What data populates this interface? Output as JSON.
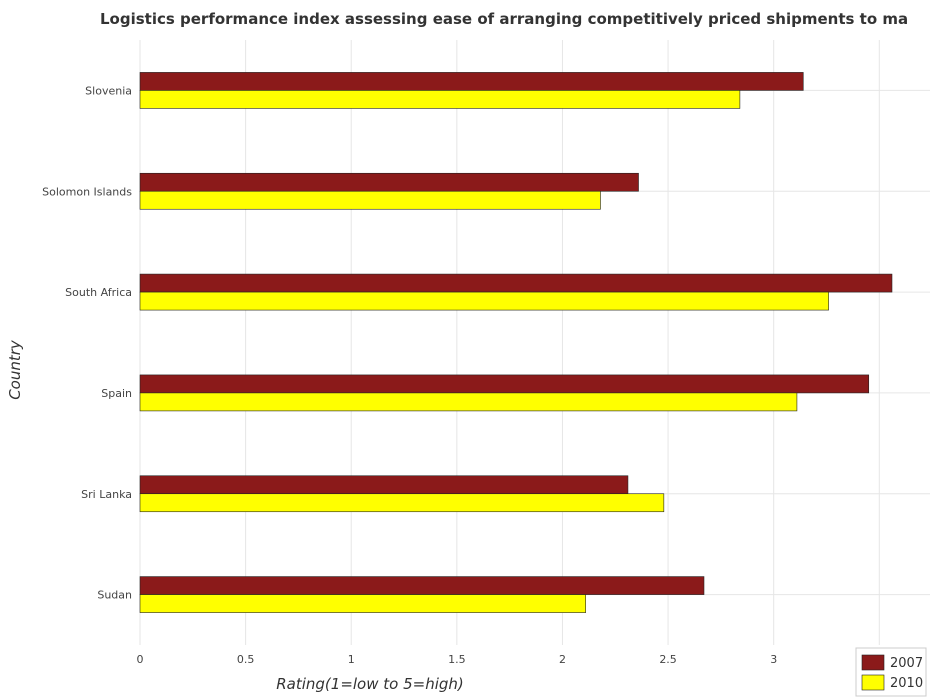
{
  "chart_data": {
    "type": "bar",
    "orientation": "horizontal",
    "title": "Logistics performance index assessing ease of arranging competitively priced shipments to ma",
    "xlabel": "Rating(1=low to 5=high)",
    "ylabel": "Country",
    "categories": [
      "Slovenia",
      "Solomon Islands",
      "South Africa",
      "Spain",
      "Sri Lanka",
      "Sudan"
    ],
    "series": [
      {
        "name": "2007",
        "color": "#8b1a1a",
        "values": [
          3.14,
          2.36,
          3.56,
          3.45,
          2.31,
          2.67
        ]
      },
      {
        "name": "2010",
        "color": "#ffff00",
        "values": [
          2.84,
          2.18,
          3.26,
          3.11,
          2.48,
          2.11
        ]
      }
    ],
    "xlim": [
      0,
      3.74
    ],
    "xticks": [
      0,
      0.5,
      1,
      1.5,
      2,
      2.5,
      3,
      3.5
    ],
    "xtick_labels": [
      "0",
      "0.5",
      "1",
      "1.5",
      "2",
      "2.5",
      "3",
      "3.5"
    ],
    "grid": true,
    "legend_position": "bottom-right"
  }
}
